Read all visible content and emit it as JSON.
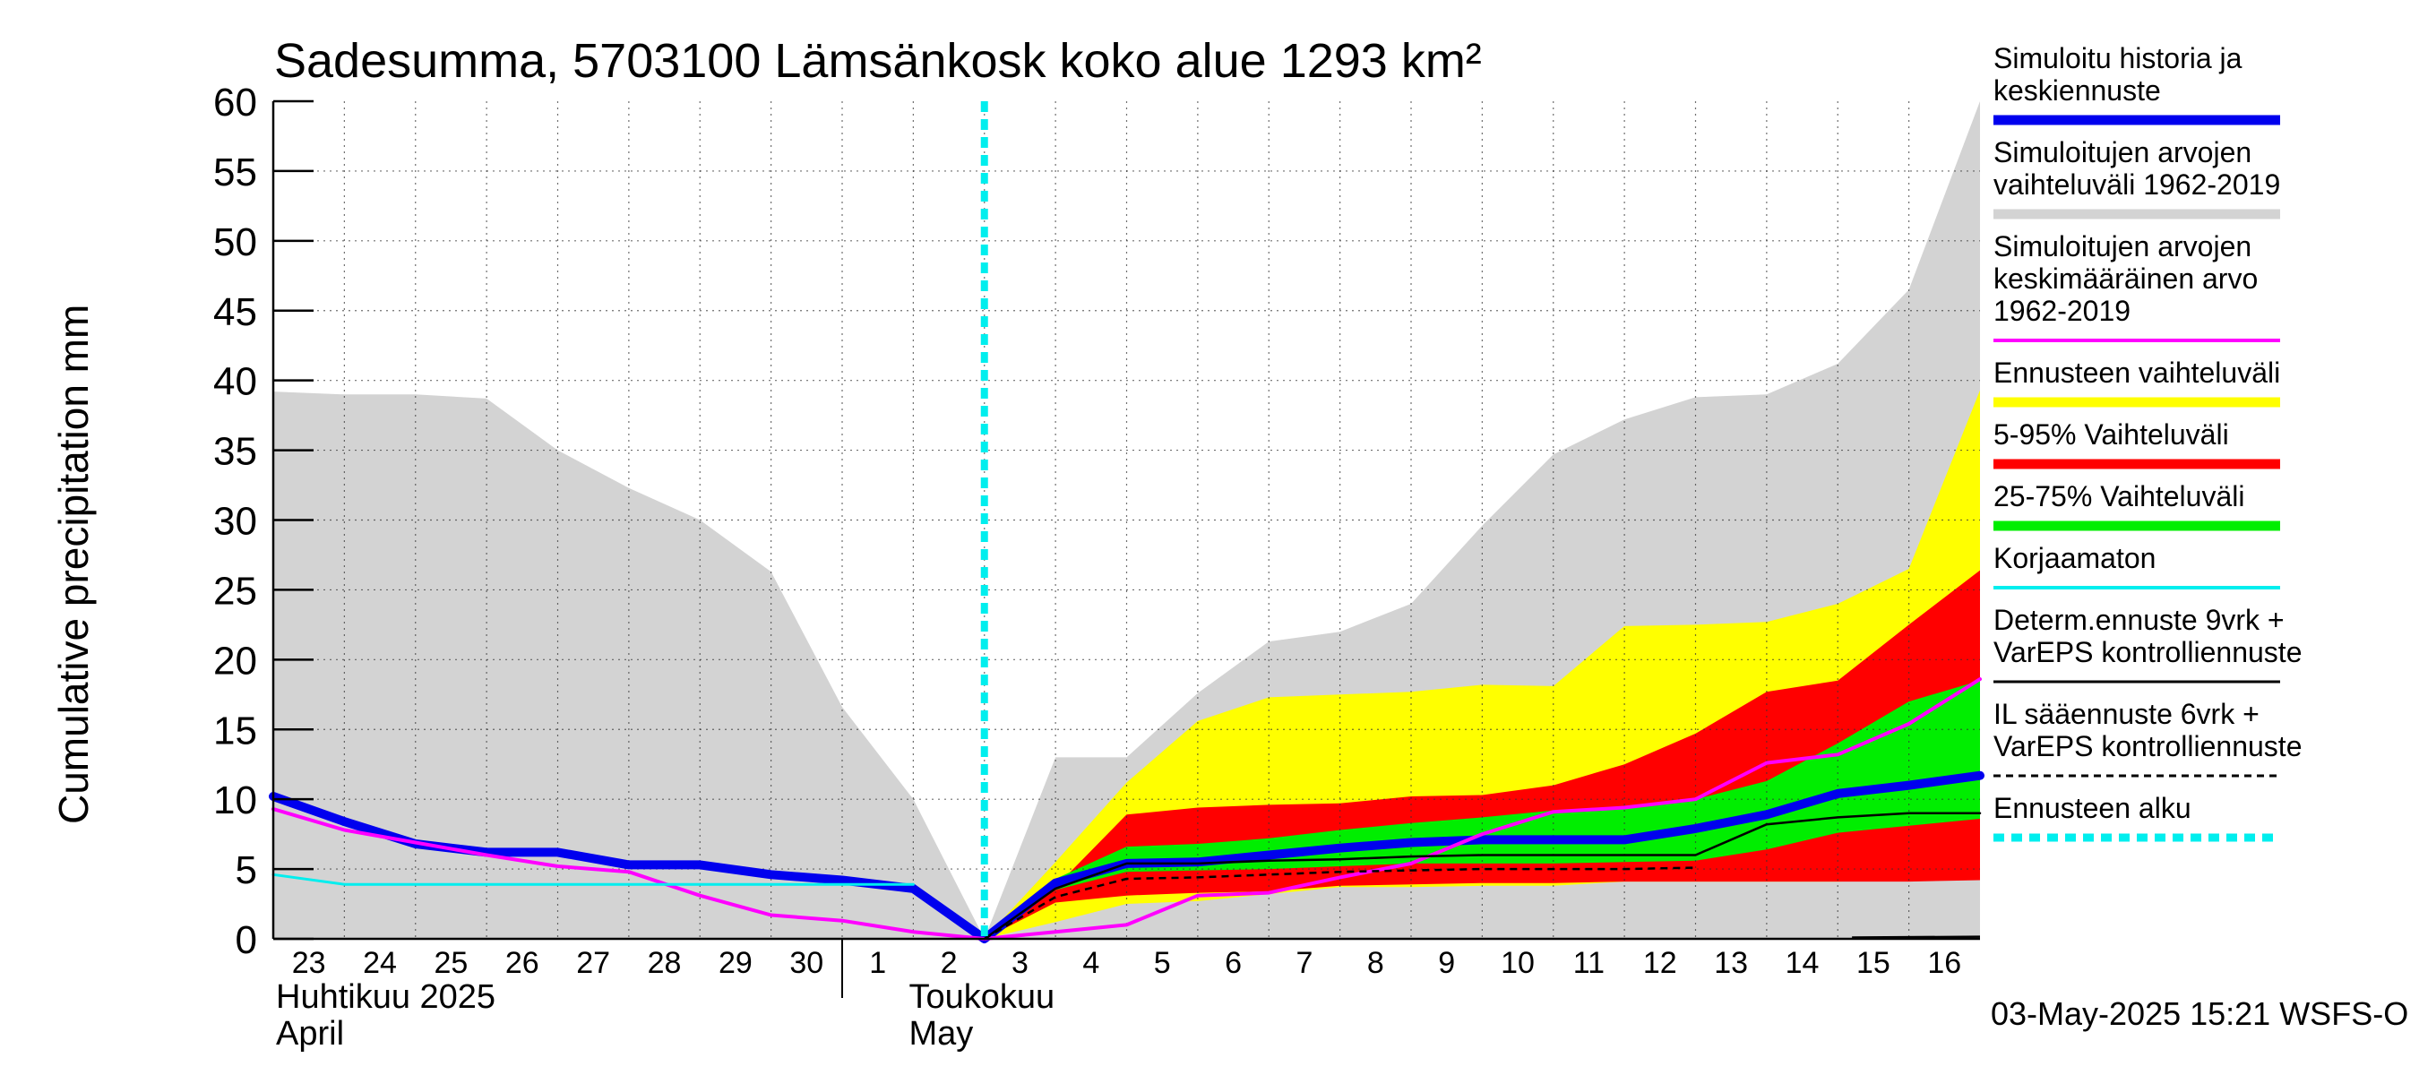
{
  "chart_data": {
    "type": "area",
    "title": "Sadesumma, 5703100 Lämsänkosk koko alue 1293 km²",
    "ylabel": "Cumulative precipitation   mm",
    "ylim": [
      0,
      60
    ],
    "yticks": [
      "0",
      "5",
      "10",
      "15",
      "20",
      "25",
      "30",
      "35",
      "40",
      "45",
      "50",
      "55",
      "60"
    ],
    "xlim": [
      0,
      24
    ],
    "day_labels": [
      "23",
      "24",
      "25",
      "26",
      "27",
      "28",
      "29",
      "30",
      "1",
      "2",
      "3",
      "4",
      "5",
      "6",
      "7",
      "8",
      "9",
      "10",
      "11",
      "12",
      "13",
      "14",
      "15",
      "16"
    ],
    "month_labels": [
      {
        "fi": "Huhtikuu  2025",
        "en": "April",
        "x": 0
      },
      {
        "fi": "Toukokuu",
        "en": "May",
        "x": 8.9
      }
    ],
    "timestamp": "03-May-2025 15:21 WSFS-O",
    "forecast_start_x": 10,
    "x": [
      0,
      1,
      2,
      3,
      4,
      5,
      6,
      7,
      8,
      9,
      10,
      11,
      12,
      13,
      14,
      15,
      16,
      17,
      18,
      19,
      20,
      21,
      22,
      23,
      24
    ],
    "bands": [
      {
        "name": "Simuloitujen arvojen vaihteluväli 1962-2019",
        "color": "#d3d3d3",
        "upper": [
          [
            0,
            39.2
          ],
          [
            1,
            39
          ],
          [
            2,
            39
          ],
          [
            3,
            38.7
          ],
          [
            4,
            35
          ],
          [
            5,
            32.3
          ],
          [
            6,
            30
          ],
          [
            7,
            26.3
          ],
          [
            8,
            16.6
          ],
          [
            9,
            10
          ],
          [
            10,
            0
          ],
          [
            11,
            13
          ],
          [
            12,
            13
          ],
          [
            13,
            17.6
          ],
          [
            14,
            21.3
          ],
          [
            15,
            22
          ],
          [
            16,
            24
          ],
          [
            17,
            29.6
          ],
          [
            18,
            34.7
          ],
          [
            19,
            37.2
          ],
          [
            20,
            38.8
          ],
          [
            21,
            39
          ],
          [
            22,
            41.2
          ],
          [
            23,
            46.5
          ],
          [
            24,
            60
          ]
        ],
        "lower": [
          [
            0,
            0
          ],
          [
            10,
            0
          ],
          [
            24,
            0
          ]
        ]
      },
      {
        "name": "Ennusteen vaihteluväli",
        "color": "#ffff00",
        "upper": [
          [
            10,
            0
          ],
          [
            11,
            5.5
          ],
          [
            12,
            11.2
          ],
          [
            13,
            15.6
          ],
          [
            14,
            17.3
          ],
          [
            15,
            17.5
          ],
          [
            16,
            17.7
          ],
          [
            17,
            18.2
          ],
          [
            18,
            18.1
          ],
          [
            19,
            22.4
          ],
          [
            20,
            22.5
          ],
          [
            21,
            22.7
          ],
          [
            22,
            24
          ],
          [
            23,
            26.5
          ],
          [
            24,
            39.3
          ]
        ],
        "lower": [
          [
            10,
            0
          ],
          [
            11,
            1.2
          ],
          [
            12,
            2.5
          ],
          [
            13,
            2.7
          ],
          [
            14,
            3.2
          ],
          [
            15,
            3.7
          ],
          [
            16,
            3.7
          ],
          [
            17,
            3.8
          ],
          [
            18,
            3.8
          ],
          [
            19,
            4.1
          ],
          [
            20,
            4.1
          ],
          [
            21,
            4.1
          ],
          [
            22,
            4.1
          ],
          [
            23,
            4.2
          ],
          [
            24,
            4.3
          ]
        ]
      },
      {
        "name": "5-95% Vaihteluväli",
        "color": "#ff0000",
        "upper": [
          [
            10,
            0
          ],
          [
            11,
            3.7
          ],
          [
            12,
            8.9
          ],
          [
            13,
            9.4
          ],
          [
            14,
            9.6
          ],
          [
            15,
            9.7
          ],
          [
            16,
            10.2
          ],
          [
            17,
            10.3
          ],
          [
            18,
            11
          ],
          [
            19,
            12.5
          ],
          [
            20,
            14.7
          ],
          [
            21,
            17.7
          ],
          [
            22,
            18.5
          ],
          [
            23,
            22.5
          ],
          [
            24,
            26.4
          ]
        ],
        "lower": [
          [
            10,
            0
          ],
          [
            11,
            2.6
          ],
          [
            12,
            3.1
          ],
          [
            13,
            3.3
          ],
          [
            14,
            3.4
          ],
          [
            15,
            3.8
          ],
          [
            16,
            3.9
          ],
          [
            17,
            4
          ],
          [
            18,
            4
          ],
          [
            19,
            4.1
          ],
          [
            20,
            4.1
          ],
          [
            21,
            4.1
          ],
          [
            22,
            4.1
          ],
          [
            23,
            4.1
          ],
          [
            24,
            4.2
          ]
        ]
      },
      {
        "name": "25-75% Vaihteluväli",
        "color": "#00ee00",
        "upper": [
          [
            10,
            0
          ],
          [
            11,
            4.3
          ],
          [
            12,
            6.6
          ],
          [
            13,
            6.8
          ],
          [
            14,
            7.2
          ],
          [
            15,
            7.8
          ],
          [
            16,
            8.3
          ],
          [
            17,
            8.7
          ],
          [
            18,
            9.2
          ],
          [
            19,
            9.5
          ],
          [
            20,
            10
          ],
          [
            21,
            11.3
          ],
          [
            22,
            14
          ],
          [
            23,
            17
          ],
          [
            24,
            18.5
          ]
        ],
        "lower": [
          [
            10,
            0
          ],
          [
            11,
            3.5
          ],
          [
            12,
            4.8
          ],
          [
            13,
            4.9
          ],
          [
            14,
            5
          ],
          [
            15,
            5.2
          ],
          [
            16,
            5.4
          ],
          [
            17,
            5.4
          ],
          [
            18,
            5.4
          ],
          [
            19,
            5.5
          ],
          [
            20,
            5.6
          ],
          [
            21,
            6.4
          ],
          [
            22,
            7.6
          ],
          [
            23,
            8.1
          ],
          [
            24,
            8.6
          ]
        ]
      }
    ],
    "series": [
      {
        "name": "Simuloitu historia ja keskiennuste",
        "color": "#0000ee",
        "width": 10,
        "dash": "",
        "points": [
          [
            0,
            10.2
          ],
          [
            1,
            8.4
          ],
          [
            2,
            6.8
          ],
          [
            3,
            6.2
          ],
          [
            4,
            6.2
          ],
          [
            5,
            5.3
          ],
          [
            6,
            5.3
          ],
          [
            7,
            4.6
          ],
          [
            8,
            4.2
          ],
          [
            9,
            3.6
          ],
          [
            10,
            0
          ],
          [
            11,
            4
          ],
          [
            12,
            5.4
          ],
          [
            13,
            5.5
          ],
          [
            14,
            6
          ],
          [
            15,
            6.5
          ],
          [
            16,
            6.9
          ],
          [
            17,
            7.1
          ],
          [
            18,
            7.1
          ],
          [
            19,
            7.1
          ],
          [
            20,
            7.9
          ],
          [
            21,
            8.9
          ],
          [
            22,
            10.4
          ],
          [
            23,
            11
          ],
          [
            24,
            11.7
          ]
        ]
      },
      {
        "name": "Simuloitujen arvojen keskimääräinen arvo 1962-2019",
        "color": "#ff00ff",
        "width": 4,
        "dash": "",
        "points": [
          [
            0,
            9.3
          ],
          [
            1,
            7.8
          ],
          [
            2,
            6.9
          ],
          [
            3,
            6
          ],
          [
            4,
            5.2
          ],
          [
            5,
            4.8
          ],
          [
            6,
            3.1
          ],
          [
            7,
            1.7
          ],
          [
            8,
            1.3
          ],
          [
            9,
            0.5
          ],
          [
            10,
            0
          ],
          [
            11,
            0.5
          ],
          [
            12,
            1
          ],
          [
            13,
            3.1
          ],
          [
            14,
            3.3
          ],
          [
            15,
            4.4
          ],
          [
            16,
            5.4
          ],
          [
            17,
            7.5
          ],
          [
            18,
            9.1
          ],
          [
            19,
            9.4
          ],
          [
            20,
            10
          ],
          [
            21,
            12.6
          ],
          [
            22,
            13.2
          ],
          [
            23,
            15.4
          ],
          [
            24,
            18.6
          ]
        ]
      },
      {
        "name": "Korjaamaton",
        "color": "#00eeee",
        "width": 3,
        "dash": "",
        "points": [
          [
            0,
            4.6
          ],
          [
            1,
            3.9
          ],
          [
            2,
            3.9
          ],
          [
            3,
            3.9
          ],
          [
            4,
            3.9
          ],
          [
            5,
            3.9
          ],
          [
            6,
            3.9
          ],
          [
            7,
            3.9
          ],
          [
            8,
            3.9
          ],
          [
            9,
            3.9
          ]
        ]
      },
      {
        "name": "Determ.ennuste 9vrk + VarEPS kontrolliennuste",
        "color": "#000000",
        "width": 2.5,
        "dash": "",
        "points": [
          [
            10,
            0
          ],
          [
            11,
            3.6
          ],
          [
            12,
            5.4
          ],
          [
            13,
            5.4
          ],
          [
            14,
            5.6
          ],
          [
            15,
            5.7
          ],
          [
            16,
            5.9
          ],
          [
            17,
            6
          ],
          [
            18,
            6
          ],
          [
            19,
            6
          ],
          [
            20,
            6
          ],
          [
            21,
            8.2
          ],
          [
            22,
            8.7
          ],
          [
            23,
            9
          ],
          [
            24,
            9
          ]
        ]
      },
      {
        "name": "IL sääennuste 6vrk + VarEPS kontrolliennuste",
        "color": "#000000",
        "width": 2.5,
        "dash": "8,6",
        "points": [
          [
            10,
            0
          ],
          [
            11,
            3
          ],
          [
            12,
            4.3
          ],
          [
            13,
            4.4
          ],
          [
            14,
            4.6
          ],
          [
            15,
            4.8
          ],
          [
            16,
            4.9
          ],
          [
            17,
            5
          ],
          [
            18,
            5
          ],
          [
            19,
            5
          ],
          [
            20,
            5.1
          ]
        ]
      }
    ],
    "legend_placement": "right",
    "legend": [
      {
        "lines": [
          "Simuloitu historia ja",
          "keskiennuste"
        ],
        "color": "#0000ee",
        "style": "solid-thick"
      },
      {
        "lines": [
          "Simuloitujen arvojen",
          "vaihteluväli 1962-2019"
        ],
        "color": "#d3d3d3",
        "style": "solid-thick"
      },
      {
        "lines": [
          "Simuloitujen arvojen",
          "keskimääräinen arvo",
          "   1962-2019"
        ],
        "color": "#ff00ff",
        "style": "solid"
      },
      {
        "lines": [
          "Ennusteen vaihteluväli"
        ],
        "color": "#ffff00",
        "style": "solid-thick"
      },
      {
        "lines": [
          "5-95% Vaihteluväli"
        ],
        "color": "#ff0000",
        "style": "solid-thick"
      },
      {
        "lines": [
          "25-75% Vaihteluväli"
        ],
        "color": "#00ee00",
        "style": "solid-thick"
      },
      {
        "lines": [
          "Korjaamaton"
        ],
        "color": "#00eeee",
        "style": "solid"
      },
      {
        "lines": [
          "Determ.ennuste 9vrk +",
          "VarEPS kontrolliennuste"
        ],
        "color": "#000000",
        "style": "solid-thin"
      },
      {
        "lines": [
          "IL sääennuste 6vrk  +",
          "  VarEPS kontrolliennuste"
        ],
        "color": "#000000",
        "style": "dashed"
      },
      {
        "lines": [
          "Ennusteen alku"
        ],
        "color": "#00eeee",
        "style": "dotted-thick"
      }
    ]
  }
}
